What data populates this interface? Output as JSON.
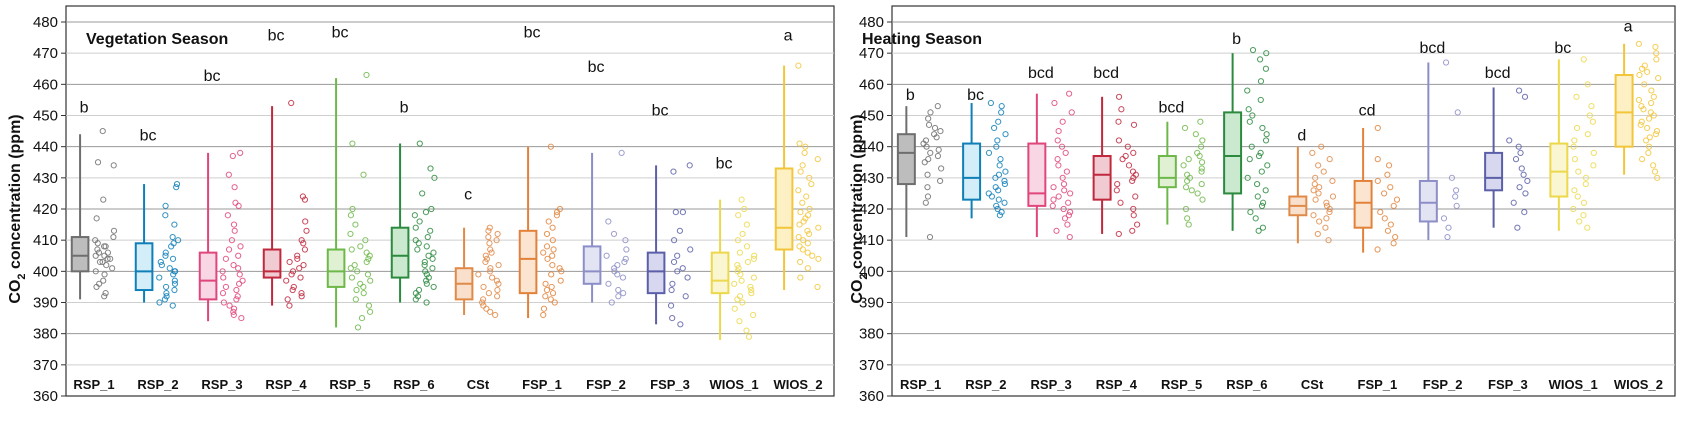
{
  "chart_data": [
    {
      "type": "box",
      "title": "Vegetation Season",
      "ylabel_prefix": "CO",
      "ylabel_sub": "2",
      "ylabel_suffix": " concentration (ppm)",
      "ylim": [
        360,
        480
      ],
      "yticks": [
        360,
        370,
        380,
        390,
        400,
        410,
        420,
        430,
        440,
        450,
        460,
        470,
        480
      ],
      "groups": [
        {
          "name": "RSP_1",
          "color": "#6e6e6e",
          "fill": "#bdbdbd",
          "min": 391,
          "q1": 400,
          "median": 405,
          "q3": 411,
          "max": 444,
          "letter": "b",
          "letter_y": 451,
          "points": [
            392,
            393,
            395,
            396,
            397,
            399,
            400,
            401,
            402,
            403,
            403,
            404,
            404,
            405,
            405,
            406,
            406,
            407,
            408,
            408,
            409,
            410,
            411,
            413,
            417,
            423,
            434,
            435,
            445
          ]
        },
        {
          "name": "RSP_2",
          "color": "#0f7fb8",
          "fill": "#d3eef8",
          "min": 390,
          "q1": 394,
          "median": 400,
          "q3": 409,
          "max": 428,
          "letter": "bc",
          "letter_y": 442,
          "points": [
            389,
            390,
            391,
            392,
            393,
            394,
            395,
            396,
            397,
            398,
            399,
            400,
            400,
            401,
            402,
            403,
            404,
            405,
            406,
            408,
            409,
            410,
            411,
            415,
            418,
            421,
            427,
            428
          ]
        },
        {
          "name": "RSP_3",
          "color": "#e0457b",
          "fill": "#f8d6e3",
          "min": 384,
          "q1": 391,
          "median": 397,
          "q3": 406,
          "max": 438,
          "letter": "bc",
          "letter_y": 461,
          "points": [
            385,
            386,
            387,
            388,
            389,
            390,
            391,
            392,
            393,
            394,
            395,
            396,
            397,
            398,
            399,
            400,
            401,
            402,
            404,
            405,
            407,
            408,
            410,
            413,
            415,
            418,
            421,
            422,
            427,
            431,
            437,
            438
          ]
        },
        {
          "name": "RSP_4",
          "color": "#c0283e",
          "fill": "#f1cbd2",
          "min": 389,
          "q1": 398,
          "median": 400,
          "q3": 407,
          "max": 453,
          "letter": "bc",
          "letter_y": 474,
          "points": [
            389,
            391,
            392,
            393,
            394,
            395,
            397,
            398,
            399,
            400,
            401,
            402,
            403,
            404,
            405,
            407,
            409,
            410,
            413,
            416,
            423,
            424,
            454
          ]
        },
        {
          "name": "RSP_5",
          "color": "#6eb84a",
          "fill": "#dff0d3",
          "min": 382,
          "q1": 395,
          "median": 400,
          "q3": 407,
          "max": 462,
          "letter": "bc",
          "letter_y": 475,
          "points": [
            382,
            385,
            387,
            389,
            391,
            393,
            394,
            395,
            396,
            397,
            398,
            399,
            400,
            401,
            402,
            403,
            404,
            405,
            406,
            407,
            408,
            410,
            412,
            415,
            418,
            420,
            431,
            441,
            463
          ]
        },
        {
          "name": "RSP_6",
          "color": "#2b8a3e",
          "fill": "#cbe9cf",
          "min": 390,
          "q1": 398,
          "median": 405,
          "q3": 414,
          "max": 441,
          "letter": "b",
          "letter_y": 451,
          "points": [
            390,
            391,
            392,
            393,
            394,
            395,
            396,
            397,
            398,
            399,
            400,
            401,
            402,
            403,
            404,
            405,
            406,
            407,
            408,
            409,
            410,
            411,
            413,
            414,
            416,
            418,
            419,
            420,
            425,
            430,
            433,
            441
          ]
        },
        {
          "name": "CSt",
          "color": "#e08a48",
          "fill": "#f9e0cc",
          "min": 386,
          "q1": 391,
          "median": 396,
          "q3": 401,
          "max": 414,
          "letter": "c",
          "letter_y": 423,
          "points": [
            386,
            387,
            388,
            389,
            390,
            391,
            392,
            393,
            394,
            395,
            396,
            397,
            398,
            399,
            400,
            401,
            402,
            403,
            404,
            405,
            406,
            407,
            409,
            410,
            411,
            412,
            413,
            414
          ]
        },
        {
          "name": "FSP_1",
          "color": "#e2823a",
          "fill": "#fbe4d0",
          "min": 385,
          "q1": 393,
          "median": 404,
          "q3": 413,
          "max": 440,
          "letter": "bc",
          "letter_y": 475,
          "points": [
            386,
            388,
            390,
            391,
            392,
            393,
            394,
            395,
            396,
            397,
            399,
            400,
            401,
            402,
            404,
            405,
            406,
            407,
            408,
            410,
            412,
            414,
            416,
            418,
            419,
            420,
            440
          ]
        },
        {
          "name": "FSP_2",
          "color": "#8d8ec7",
          "fill": "#e2e3f3",
          "min": 390,
          "q1": 396,
          "median": 400,
          "q3": 408,
          "max": 438,
          "letter": "bc",
          "letter_y": 464,
          "points": [
            390,
            392,
            393,
            394,
            396,
            398,
            399,
            400,
            401,
            402,
            403,
            404,
            405,
            407,
            410,
            412,
            416,
            438
          ]
        },
        {
          "name": "FSP_3",
          "color": "#5b5fa8",
          "fill": "#d7d8ef",
          "min": 383,
          "q1": 393,
          "median": 400,
          "q3": 406,
          "max": 434,
          "letter": "bc",
          "letter_y": 450,
          "points": [
            383,
            385,
            389,
            392,
            394,
            396,
            398,
            400,
            401,
            403,
            405,
            407,
            410,
            413,
            419,
            419,
            432,
            434
          ]
        },
        {
          "name": "WIOS_1",
          "color": "#ecd84a",
          "fill": "#fbf6d2",
          "min": 378,
          "q1": 393,
          "median": 397,
          "q3": 406,
          "max": 423,
          "letter": "bc",
          "letter_y": 433,
          "points": [
            379,
            381,
            384,
            386,
            388,
            390,
            391,
            392,
            393,
            394,
            395,
            396,
            397,
            398,
            399,
            400,
            401,
            402,
            403,
            404,
            405,
            406,
            408,
            410,
            412,
            415,
            418,
            420,
            423
          ]
        },
        {
          "name": "WIOS_2",
          "color": "#f2c63a",
          "fill": "#fdf0c4",
          "min": 394,
          "q1": 407,
          "median": 414,
          "q3": 433,
          "max": 466,
          "letter": "a",
          "letter_y": 474,
          "points": [
            395,
            398,
            401,
            403,
            404,
            405,
            406,
            407,
            408,
            409,
            410,
            411,
            412,
            413,
            414,
            415,
            416,
            417,
            418,
            419,
            420,
            422,
            424,
            426,
            428,
            430,
            432,
            434,
            436,
            438,
            440,
            441,
            466
          ]
        }
      ]
    },
    {
      "type": "box",
      "title": "Heating Season",
      "ylabel_prefix": "CO",
      "ylabel_sub": "2",
      "ylabel_suffix": " concentration (ppm)",
      "ylim": [
        360,
        480
      ],
      "yticks": [
        360,
        370,
        380,
        390,
        400,
        410,
        420,
        430,
        440,
        450,
        460,
        470,
        480
      ],
      "groups": [
        {
          "name": "RSP_1",
          "color": "#6e6e6e",
          "fill": "#bdbdbd",
          "min": 411,
          "q1": 428,
          "median": 438,
          "q3": 444,
          "max": 453,
          "letter": "b",
          "letter_y": 455,
          "points": [
            411,
            422,
            424,
            427,
            429,
            431,
            433,
            435,
            436,
            437,
            438,
            439,
            440,
            441,
            442,
            443,
            444,
            445,
            446,
            447,
            449,
            451,
            453
          ]
        },
        {
          "name": "RSP_2",
          "color": "#0f7fb8",
          "fill": "#d3eef8",
          "min": 417,
          "q1": 423,
          "median": 430,
          "q3": 441,
          "max": 454,
          "letter": "bc",
          "letter_y": 455,
          "points": [
            418,
            419,
            420,
            421,
            422,
            423,
            424,
            425,
            426,
            427,
            428,
            429,
            430,
            431,
            432,
            434,
            436,
            438,
            440,
            442,
            444,
            446,
            448,
            451,
            453,
            454
          ]
        },
        {
          "name": "RSP_3",
          "color": "#e0457b",
          "fill": "#f8d6e3",
          "min": 411,
          "q1": 421,
          "median": 425,
          "q3": 441,
          "max": 457,
          "letter": "bcd",
          "letter_y": 462,
          "points": [
            411,
            413,
            415,
            417,
            418,
            419,
            420,
            421,
            422,
            423,
            424,
            425,
            426,
            427,
            428,
            430,
            432,
            434,
            436,
            438,
            440,
            442,
            445,
            448,
            451,
            454,
            457
          ]
        },
        {
          "name": "RSP_4",
          "color": "#c0283e",
          "fill": "#f1cbd2",
          "min": 412,
          "q1": 423,
          "median": 431,
          "q3": 437,
          "max": 456,
          "letter": "bcd",
          "letter_y": 462,
          "points": [
            412,
            413,
            415,
            418,
            420,
            422,
            424,
            426,
            428,
            429,
            430,
            431,
            432,
            434,
            436,
            437,
            438,
            440,
            442,
            447,
            448,
            452,
            456
          ]
        },
        {
          "name": "RSP_5",
          "color": "#6eb84a",
          "fill": "#dff0d3",
          "min": 415,
          "q1": 427,
          "median": 430,
          "q3": 437,
          "max": 448,
          "letter": "bcd",
          "letter_y": 451,
          "points": [
            415,
            417,
            420,
            423,
            425,
            426,
            427,
            428,
            429,
            430,
            431,
            432,
            433,
            434,
            435,
            436,
            437,
            438,
            440,
            442,
            444,
            446,
            448
          ]
        },
        {
          "name": "RSP_6",
          "color": "#2b8a3e",
          "fill": "#cbe9cf",
          "min": 413,
          "q1": 425,
          "median": 437,
          "q3": 451,
          "max": 470,
          "letter": "b",
          "letter_y": 473,
          "points": [
            413,
            414,
            417,
            419,
            421,
            422,
            424,
            426,
            428,
            430,
            432,
            434,
            436,
            437,
            438,
            440,
            442,
            444,
            446,
            448,
            450,
            452,
            455,
            458,
            461,
            465,
            468,
            470,
            471
          ]
        },
        {
          "name": "CSt",
          "color": "#e08a48",
          "fill": "#f9e0cc",
          "min": 409,
          "q1": 418,
          "median": 421,
          "q3": 424,
          "max": 440,
          "letter": "d",
          "letter_y": 442,
          "points": [
            410,
            412,
            414,
            416,
            417,
            418,
            419,
            420,
            421,
            422,
            423,
            424,
            425,
            426,
            427,
            428,
            429,
            430,
            432,
            434,
            436,
            438,
            440
          ]
        },
        {
          "name": "FSP_1",
          "color": "#e2823a",
          "fill": "#fbe4d0",
          "min": 406,
          "q1": 414,
          "median": 422,
          "q3": 429,
          "max": 446,
          "letter": "cd",
          "letter_y": 450,
          "points": [
            407,
            409,
            411,
            413,
            415,
            417,
            419,
            421,
            423,
            425,
            427,
            429,
            431,
            434,
            436,
            446
          ]
        },
        {
          "name": "FSP_2",
          "color": "#8d8ec7",
          "fill": "#e2e3f3",
          "min": 410,
          "q1": 416,
          "median": 422,
          "q3": 429,
          "max": 467,
          "letter": "bcd",
          "letter_y": 470,
          "points": [
            411,
            414,
            417,
            421,
            424,
            426,
            430,
            451,
            467
          ]
        },
        {
          "name": "FSP_3",
          "color": "#5b5fa8",
          "fill": "#d7d8ef",
          "min": 414,
          "q1": 426,
          "median": 430,
          "q3": 438,
          "max": 459,
          "letter": "bcd",
          "letter_y": 462,
          "points": [
            414,
            419,
            422,
            425,
            427,
            429,
            431,
            433,
            436,
            438,
            440,
            442,
            456,
            458
          ]
        },
        {
          "name": "WIOS_1",
          "color": "#ecd84a",
          "fill": "#fbf6d2",
          "min": 413,
          "q1": 424,
          "median": 432,
          "q3": 441,
          "max": 468,
          "letter": "bc",
          "letter_y": 470,
          "points": [
            414,
            416,
            418,
            420,
            422,
            424,
            426,
            428,
            430,
            432,
            434,
            436,
            438,
            440,
            442,
            444,
            446,
            448,
            450,
            453,
            456,
            460,
            468
          ]
        },
        {
          "name": "WIOS_2",
          "color": "#f2c63a",
          "fill": "#fdf0c4",
          "min": 431,
          "q1": 440,
          "median": 451,
          "q3": 463,
          "max": 473,
          "letter": "a",
          "letter_y": 477,
          "points": [
            430,
            432,
            434,
            436,
            438,
            440,
            442,
            443,
            444,
            445,
            446,
            447,
            448,
            449,
            450,
            451,
            452,
            453,
            454,
            455,
            456,
            458,
            460,
            462,
            463,
            464,
            465,
            466,
            468,
            470,
            472,
            473
          ]
        }
      ]
    }
  ]
}
